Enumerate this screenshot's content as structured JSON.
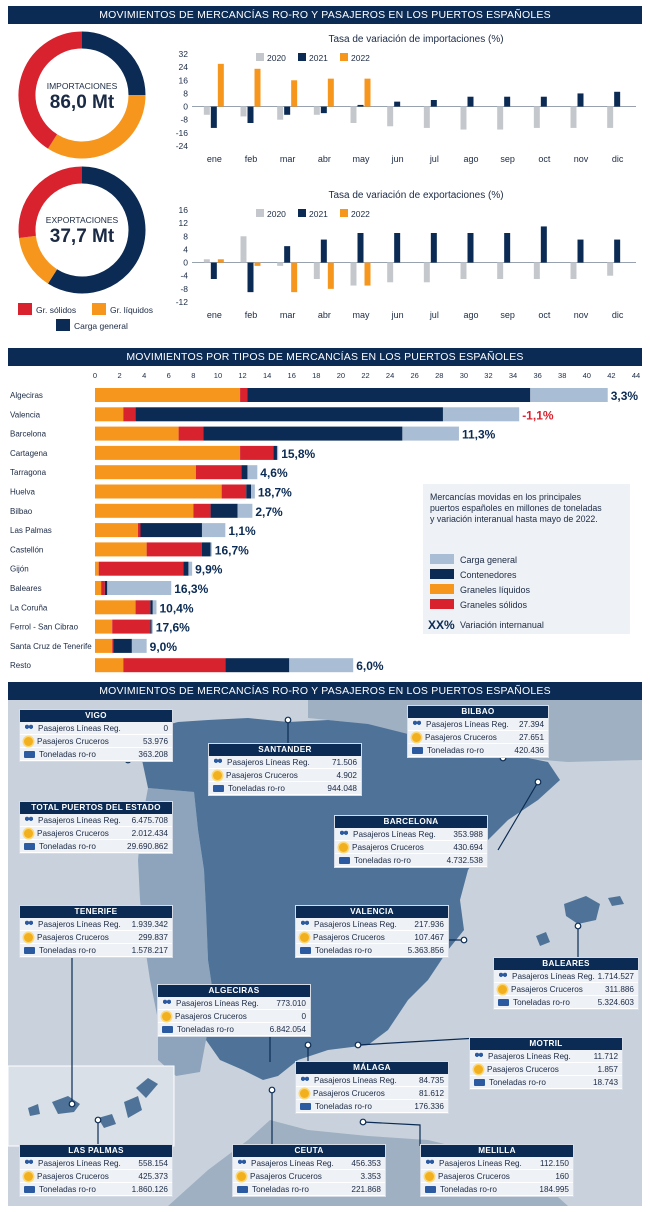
{
  "bands": {
    "top": "MOVIMIENTOS DE MERCANCÍAS RO-RO Y PASAJEROS EN LOS PUERTOS ESPAÑOLES",
    "middle": "MOVIMIENTOS POR TIPOS DE MERCANCÍAS EN LOS PUERTOS ESPAÑOLES",
    "bottom": "MOVIMIENTOS DE MERCANCÍAS RO-RO Y PASAJEROS EN LOS PUERTOS ESPAÑOLES"
  },
  "colors": {
    "navy": "#0b2b54",
    "orange": "#f7961d",
    "red": "#d8222e",
    "lightblue": "#a9bdd4",
    "gray": "#c4c8cd",
    "sea": "#c9d2dc",
    "land": "#4f7398",
    "neighbor": "#9fb0c2"
  },
  "donuts": {
    "import": {
      "label": "IMPORTACIONES",
      "value": "86,0 Mt",
      "shares": {
        "solidos": 0.41,
        "liquidos": 0.34,
        "general": 0.25
      }
    },
    "export": {
      "label": "EXPORTACIONES",
      "value": "37,7 Mt",
      "shares": {
        "solidos": 0.27,
        "liquidos": 0.14,
        "general": 0.59
      }
    }
  },
  "donut_legend": [
    "Gr. sólidos",
    "Gr. líquidos",
    "Carga general"
  ],
  "chart_data": [
    {
      "type": "bar",
      "title": "Tasa de variación de importaciones (%)",
      "categories": [
        "ene",
        "feb",
        "mar",
        "abr",
        "may",
        "jun",
        "jul",
        "ago",
        "sep",
        "oct",
        "nov",
        "dic"
      ],
      "series": [
        {
          "name": "2020",
          "values": [
            -5,
            -6,
            -8,
            -5,
            -10,
            -12,
            -13,
            -14,
            -14,
            -13,
            -13,
            -13
          ]
        },
        {
          "name": "2021",
          "values": [
            -13,
            -10,
            -5,
            -4,
            1,
            3,
            4,
            6,
            6,
            6,
            8,
            9
          ]
        },
        {
          "name": "2022",
          "values": [
            26,
            23,
            16,
            17,
            17,
            null,
            null,
            null,
            null,
            null,
            null,
            null
          ]
        }
      ],
      "yticks": [
        32,
        24,
        16,
        8,
        0,
        -8,
        -16,
        -24
      ],
      "ylim": [
        -24,
        32
      ]
    },
    {
      "type": "bar",
      "title": "Tasa de variación de exportaciones (%)",
      "categories": [
        "ene",
        "feb",
        "mar",
        "abr",
        "may",
        "jun",
        "jul",
        "ago",
        "sep",
        "oct",
        "nov",
        "dic"
      ],
      "series": [
        {
          "name": "2020",
          "values": [
            1,
            8,
            -1,
            -5,
            -7,
            -6,
            -6,
            -5,
            -5,
            -5,
            -5,
            -4
          ]
        },
        {
          "name": "2021",
          "values": [
            -5,
            -9,
            5,
            7,
            9,
            9,
            9,
            9,
            9,
            11,
            7,
            7
          ]
        },
        {
          "name": "2022",
          "values": [
            1,
            -1,
            -9,
            -8,
            -7,
            null,
            null,
            null,
            null,
            null,
            null,
            null
          ]
        }
      ],
      "yticks": [
        16,
        12,
        8,
        4,
        0,
        -4,
        -8,
        -12
      ],
      "ylim": [
        -12,
        16
      ]
    },
    {
      "type": "bar",
      "orientation": "horizontal",
      "stacked": true,
      "xticks": [
        0,
        2,
        4,
        6,
        8,
        10,
        12,
        14,
        16,
        18,
        20,
        22,
        24,
        26,
        28,
        30,
        32,
        34,
        36,
        38,
        40,
        42,
        44
      ],
      "xlim": [
        0,
        44
      ],
      "series_names": [
        "Graneles líquidos",
        "Graneles sólidos",
        "Contenedores",
        "Carga general"
      ],
      "categories": [
        "Algeciras",
        "Valencia",
        "Barcelona",
        "Cartagena",
        "Tarragona",
        "Huelva",
        "Bilbao",
        "Las Palmas",
        "Castellón",
        "Gijón",
        "Baleares",
        "La Coruña",
        "Ferrol - San Cibrao",
        "Santa Cruz de Tenerife",
        "Resto"
      ],
      "series": [
        {
          "name": "Graneles líquidos",
          "values": [
            11.8,
            2.3,
            6.8,
            11.8,
            8.2,
            10.3,
            8.0,
            3.5,
            4.2,
            0.3,
            0.5,
            3.3,
            1.4,
            1.4,
            2.3
          ]
        },
        {
          "name": "Graneles sólidos",
          "values": [
            0.6,
            1.0,
            2.0,
            2.7,
            3.7,
            2.0,
            1.4,
            0.2,
            4.5,
            6.9,
            0.3,
            1.2,
            3.1,
            0.1,
            8.3
          ]
        },
        {
          "name": "Contenedores",
          "values": [
            23.0,
            25.0,
            16.2,
            0.3,
            0.5,
            0.4,
            2.2,
            5.0,
            0.7,
            0.4,
            0.2,
            0.2,
            0.1,
            1.5,
            5.2
          ]
        },
        {
          "name": "Carga general",
          "values": [
            6.3,
            6.2,
            4.6,
            0.1,
            0.8,
            0.3,
            1.2,
            1.9,
            0.1,
            0.3,
            5.2,
            0.3,
            0.1,
            1.2,
            5.2
          ]
        }
      ],
      "variation_labels": [
        "3,3%",
        "-1,1%",
        "11,3%",
        "15,8%",
        "4,6%",
        "18,7%",
        "2,7%",
        "1,1%",
        "16,7%",
        "9,9%",
        "16,3%",
        "10,4%",
        "17,6%",
        "9,0%",
        "6,0%"
      ],
      "variation_negative": [
        false,
        true,
        false,
        false,
        false,
        false,
        false,
        false,
        false,
        false,
        false,
        false,
        false,
        false,
        false
      ],
      "legend": {
        "caption": [
          "Mercancías movidas en los principales",
          "puertos españoles en millones de toneladas",
          "y variación interanual hasta mayo de 2022."
        ],
        "items": [
          "Carga general",
          "Contenedores",
          "Graneles líquidos",
          "Graneles sólidos"
        ],
        "xx_symbol": "XX%",
        "xx_label": "Variación internanual"
      }
    }
  ],
  "ports_labels": {
    "pax": "Pasajeros Líneas Reg.",
    "cru": "Pasajeros Cruceros",
    "ton": "Toneladas ro-ro"
  },
  "ports": [
    {
      "name": "VIGO",
      "pax": "0",
      "cru": "53.976",
      "ton": "363.208"
    },
    {
      "name": "TOTAL PUERTOS DEL ESTADO",
      "pax": "6.475.708",
      "cru": "2.012.434",
      "ton": "29.690.862"
    },
    {
      "name": "SANTANDER",
      "pax": "71.506",
      "cru": "4.902",
      "ton": "944.048"
    },
    {
      "name": "BILBAO",
      "pax": "27.394",
      "cru": "27.651",
      "ton": "420.436"
    },
    {
      "name": "BARCELONA",
      "pax": "353.988",
      "cru": "430.694",
      "ton": "4.732.538"
    },
    {
      "name": "VALENCIA",
      "pax": "217.936",
      "cru": "107.467",
      "ton": "5.363.856"
    },
    {
      "name": "TENERIFE",
      "pax": "1.939.342",
      "cru": "299.837",
      "ton": "1.578.217"
    },
    {
      "name": "ALGECIRAS",
      "pax": "773.010",
      "cru": "0",
      "ton": "6.842.054"
    },
    {
      "name": "BALEARES",
      "pax": "1.714.527",
      "cru": "311.886",
      "ton": "5.324.603"
    },
    {
      "name": "MOTRIL",
      "pax": "11.712",
      "cru": "1.857",
      "ton": "18.743"
    },
    {
      "name": "MÁLAGA",
      "pax": "84.735",
      "cru": "81.612",
      "ton": "176.336"
    },
    {
      "name": "LAS PALMAS",
      "pax": "558.154",
      "cru": "425.373",
      "ton": "1.860.126"
    },
    {
      "name": "CEUTA",
      "pax": "456.353",
      "cru": "3.353",
      "ton": "221.868"
    },
    {
      "name": "MELILLA",
      "pax": "112.150",
      "cru": "160",
      "ton": "184.995"
    }
  ]
}
